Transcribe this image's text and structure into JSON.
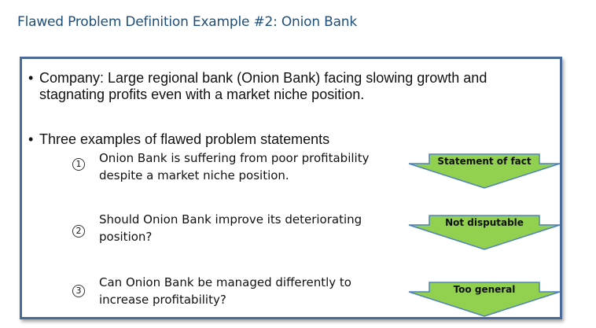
{
  "slide": {
    "title": "Flawed Problem Definition Example #2: Onion Bank",
    "bullet_marker": "•",
    "bullets": [
      {
        "text": "Company: Large regional bank (Onion Bank) facing slowing growth and stagnating profits even with a market niche position."
      },
      {
        "text": "Three examples of flawed problem statements"
      }
    ],
    "items": [
      {
        "number": "1",
        "text": "Onion Bank is suffering from poor profitability despite a market niche position.",
        "tag": "Statement of fact"
      },
      {
        "number": "2",
        "text": "Should Onion Bank improve its deteriorating position?",
        "tag": "Not disputable"
      },
      {
        "number": "3",
        "text": "Can Onion Bank be managed differently to increase profitability?",
        "tag": "Too general"
      }
    ]
  },
  "colors": {
    "title": "#1f4e79",
    "border": "#4a6a9a",
    "arrow_fill": "#92d050",
    "arrow_stroke": "#4f81bd"
  }
}
